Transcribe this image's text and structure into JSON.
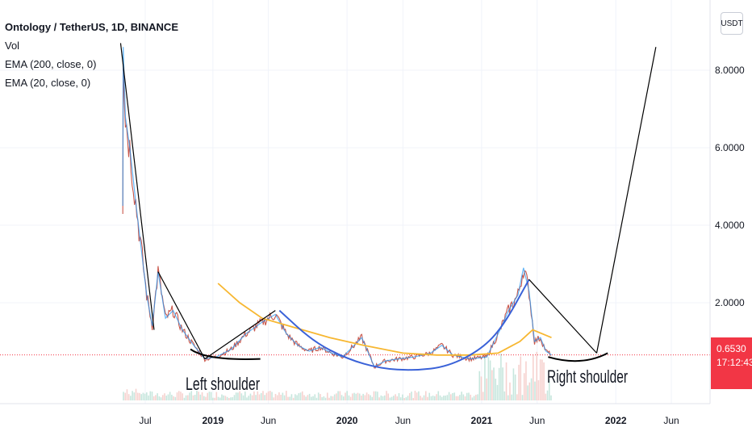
{
  "legend": {
    "title": "Ontology / TetherUS, 1D, BINANCE",
    "vol": "Vol",
    "ema200": "EMA (200, close, 0)",
    "ema20": "EMA (20, close, 0)"
  },
  "price_scale": {
    "currency": "USDT",
    "last_price": "0.6530",
    "countdown": "17:12:43"
  },
  "colors": {
    "ema200": "#f7b731",
    "ema20": "#2196f3",
    "cup_curve": "#3a62d8",
    "last_price": "#f23645",
    "pattern_lines": "#000000"
  },
  "chart_data": {
    "type": "line",
    "yticks": [
      "8.0000",
      "6.0000",
      "4.0000",
      "2.0000"
    ],
    "ytick_values": [
      8,
      6,
      4,
      2
    ],
    "ylim": [
      0,
      9
    ],
    "xticks": [
      "Jul",
      "2019",
      "Jun",
      "2020",
      "Jun",
      "2021",
      "Jun",
      "2022",
      "Jun"
    ],
    "xtick_dates": [
      "2018-07-01",
      "2019-01-01",
      "2019-06-01",
      "2020-01-01",
      "2020-06-01",
      "2021-01-01",
      "2021-06-01",
      "2022-01-01",
      "2022-06-01"
    ],
    "price_series": [
      {
        "date": "2018-05-01",
        "value": 4.5
      },
      {
        "date": "2018-05-02",
        "value": 8.6
      },
      {
        "date": "2018-05-08",
        "value": 6.8
      },
      {
        "date": "2018-05-20",
        "value": 6.0
      },
      {
        "date": "2018-06-05",
        "value": 4.6
      },
      {
        "date": "2018-06-20",
        "value": 3.4
      },
      {
        "date": "2018-07-05",
        "value": 2.2
      },
      {
        "date": "2018-07-20",
        "value": 1.4
      },
      {
        "date": "2018-08-05",
        "value": 2.8
      },
      {
        "date": "2018-08-25",
        "value": 1.6
      },
      {
        "date": "2018-09-15",
        "value": 1.8
      },
      {
        "date": "2018-10-10",
        "value": 1.3
      },
      {
        "date": "2018-11-10",
        "value": 0.9
      },
      {
        "date": "2018-12-10",
        "value": 0.55
      },
      {
        "date": "2019-01-10",
        "value": 0.6
      },
      {
        "date": "2019-02-20",
        "value": 0.8
      },
      {
        "date": "2019-04-01",
        "value": 1.2
      },
      {
        "date": "2019-05-15",
        "value": 1.5
      },
      {
        "date": "2019-06-20",
        "value": 1.7
      },
      {
        "date": "2019-07-20",
        "value": 1.2
      },
      {
        "date": "2019-08-20",
        "value": 0.9
      },
      {
        "date": "2019-09-20",
        "value": 0.75
      },
      {
        "date": "2019-10-20",
        "value": 0.85
      },
      {
        "date": "2019-11-20",
        "value": 0.7
      },
      {
        "date": "2019-12-20",
        "value": 0.6
      },
      {
        "date": "2020-02-10",
        "value": 1.1
      },
      {
        "date": "2020-03-15",
        "value": 0.35
      },
      {
        "date": "2020-04-15",
        "value": 0.5
      },
      {
        "date": "2020-05-20",
        "value": 0.55
      },
      {
        "date": "2020-07-01",
        "value": 0.6
      },
      {
        "date": "2020-08-15",
        "value": 0.7
      },
      {
        "date": "2020-09-15",
        "value": 0.9
      },
      {
        "date": "2020-10-15",
        "value": 0.65
      },
      {
        "date": "2020-12-01",
        "value": 0.55
      },
      {
        "date": "2021-01-15",
        "value": 0.6
      },
      {
        "date": "2021-02-20",
        "value": 1.3
      },
      {
        "date": "2021-03-15",
        "value": 1.8
      },
      {
        "date": "2021-04-10",
        "value": 2.2
      },
      {
        "date": "2021-04-25",
        "value": 2.9
      },
      {
        "date": "2021-05-10",
        "value": 2.3
      },
      {
        "date": "2021-05-25",
        "value": 1.0
      },
      {
        "date": "2021-06-10",
        "value": 1.1
      },
      {
        "date": "2021-06-25",
        "value": 0.75
      },
      {
        "date": "2021-07-10",
        "value": 0.65
      }
    ],
    "ema200": [
      {
        "date": "2019-01-15",
        "value": 2.5
      },
      {
        "date": "2019-03-15",
        "value": 2.0
      },
      {
        "date": "2019-05-15",
        "value": 1.6
      },
      {
        "date": "2019-08-15",
        "value": 1.35
      },
      {
        "date": "2019-11-15",
        "value": 1.1
      },
      {
        "date": "2020-02-15",
        "value": 0.9
      },
      {
        "date": "2020-06-01",
        "value": 0.7
      },
      {
        "date": "2020-09-01",
        "value": 0.65
      },
      {
        "date": "2020-12-01",
        "value": 0.65
      },
      {
        "date": "2021-02-15",
        "value": 0.7
      },
      {
        "date": "2021-04-15",
        "value": 1.0
      },
      {
        "date": "2021-05-20",
        "value": 1.3
      },
      {
        "date": "2021-07-10",
        "value": 1.1
      }
    ],
    "cup_curve": [
      {
        "date": "2019-07-01",
        "value": 1.8
      },
      {
        "date": "2019-10-01",
        "value": 1.0
      },
      {
        "date": "2020-01-01",
        "value": 0.55
      },
      {
        "date": "2020-04-01",
        "value": 0.3
      },
      {
        "date": "2020-07-01",
        "value": 0.25
      },
      {
        "date": "2020-10-01",
        "value": 0.35
      },
      {
        "date": "2021-01-01",
        "value": 0.8
      },
      {
        "date": "2021-03-01",
        "value": 1.4
      },
      {
        "date": "2021-05-10",
        "value": 2.6
      }
    ],
    "annotations": [
      {
        "text": "Left shoulder"
      },
      {
        "text": "Right shoulder"
      }
    ],
    "trend_lines": [
      [
        {
          "date": "2018-04-25",
          "value": 8.7
        },
        {
          "date": "2018-07-25",
          "value": 1.3
        }
      ],
      [
        {
          "date": "2018-08-05",
          "value": 2.8
        },
        {
          "date": "2018-12-10",
          "value": 0.55
        }
      ],
      [
        {
          "date": "2018-12-10",
          "value": 0.55
        },
        {
          "date": "2019-06-20",
          "value": 1.8
        }
      ],
      [
        {
          "date": "2021-05-10",
          "value": 2.6
        },
        {
          "date": "2021-11-10",
          "value": 0.7
        }
      ],
      [
        {
          "date": "2021-11-10",
          "value": 0.7
        },
        {
          "date": "2022-04-20",
          "value": 8.6
        }
      ]
    ],
    "shoulder_arcs": [
      [
        {
          "date": "2018-11-01",
          "value": 0.8
        },
        {
          "date": "2018-12-15",
          "value": 0.5
        },
        {
          "date": "2019-05-10",
          "value": 0.55
        }
      ],
      [
        {
          "date": "2021-07-01",
          "value": 0.6
        },
        {
          "date": "2021-10-01",
          "value": 0.35
        },
        {
          "date": "2021-12-10",
          "value": 0.7
        }
      ]
    ],
    "last_price": 0.653
  }
}
